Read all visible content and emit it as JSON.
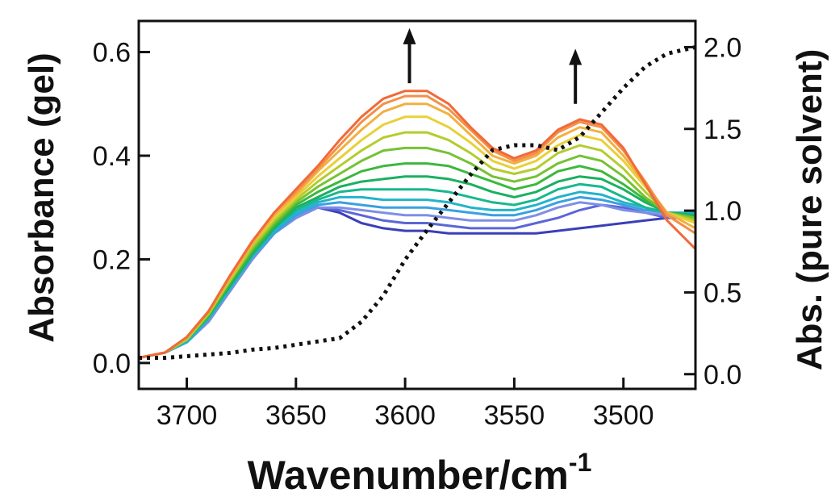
{
  "chart_data": {
    "type": "line",
    "xlabel": "Wavenumber/cm",
    "xlabel_superscript": "-1",
    "ylabel_left": "Absorbance (gel)",
    "ylabel_right": "Abs. (pure solvent)",
    "x_reversed": true,
    "xlim": [
      3722,
      3467
    ],
    "ylim_left": [
      -0.05,
      0.66
    ],
    "ylim_right": [
      -0.09,
      2.16
    ],
    "x_ticks": [
      3700,
      3650,
      3600,
      3550,
      3500
    ],
    "x_tick_labels": [
      "3700",
      "3650",
      "3600",
      "3550",
      "3500"
    ],
    "y_left_ticks": [
      0.0,
      0.2,
      0.4,
      0.6
    ],
    "y_left_tick_labels": [
      "0.0",
      "0.2",
      "0.4",
      "0.6"
    ],
    "y_right_ticks": [
      0.0,
      0.5,
      1.0,
      1.5,
      2.0
    ],
    "y_right_tick_labels": [
      "0.0",
      "0.5",
      "1.0",
      "1.5",
      "2.0"
    ],
    "grid": false,
    "legend": "none",
    "annotations": [
      {
        "type": "arrow-up",
        "x": 3598,
        "y_from": 0.54,
        "y_to": 0.64
      },
      {
        "type": "arrow-up",
        "x": 3522,
        "y_from": 0.5,
        "y_to": 0.6
      }
    ],
    "x": [
      3722,
      3710,
      3700,
      3690,
      3680,
      3670,
      3660,
      3650,
      3640,
      3630,
      3620,
      3610,
      3600,
      3590,
      3580,
      3570,
      3560,
      3550,
      3540,
      3530,
      3520,
      3510,
      3500,
      3490,
      3480,
      3467
    ],
    "series": [
      {
        "color": "#3a3fb8",
        "values": [
          0.01,
          0.02,
          0.04,
          0.08,
          0.14,
          0.2,
          0.25,
          0.28,
          0.3,
          0.29,
          0.27,
          0.26,
          0.255,
          0.255,
          0.25,
          0.25,
          0.25,
          0.25,
          0.25,
          0.255,
          0.26,
          0.265,
          0.27,
          0.275,
          0.28,
          0.28
        ]
      },
      {
        "color": "#5a66d6",
        "values": [
          0.01,
          0.02,
          0.04,
          0.08,
          0.14,
          0.2,
          0.25,
          0.28,
          0.3,
          0.295,
          0.285,
          0.275,
          0.27,
          0.27,
          0.265,
          0.26,
          0.26,
          0.26,
          0.27,
          0.28,
          0.295,
          0.305,
          0.3,
          0.29,
          0.28,
          0.28
        ]
      },
      {
        "color": "#7f8ee6",
        "values": [
          0.01,
          0.02,
          0.04,
          0.08,
          0.14,
          0.2,
          0.25,
          0.28,
          0.3,
          0.3,
          0.295,
          0.29,
          0.285,
          0.285,
          0.28,
          0.275,
          0.275,
          0.275,
          0.285,
          0.3,
          0.31,
          0.305,
          0.295,
          0.29,
          0.285,
          0.285
        ]
      },
      {
        "color": "#3aa0e0",
        "values": [
          0.01,
          0.02,
          0.04,
          0.085,
          0.145,
          0.205,
          0.25,
          0.285,
          0.305,
          0.31,
          0.305,
          0.3,
          0.3,
          0.3,
          0.295,
          0.29,
          0.285,
          0.285,
          0.295,
          0.31,
          0.32,
          0.315,
          0.305,
          0.295,
          0.29,
          0.29
        ]
      },
      {
        "color": "#22b4c8",
        "values": [
          0.01,
          0.02,
          0.04,
          0.085,
          0.145,
          0.205,
          0.255,
          0.29,
          0.31,
          0.32,
          0.32,
          0.315,
          0.315,
          0.315,
          0.31,
          0.3,
          0.295,
          0.295,
          0.305,
          0.32,
          0.33,
          0.325,
          0.31,
          0.3,
          0.29,
          0.29
        ]
      },
      {
        "color": "#18b88e",
        "values": [
          0.01,
          0.02,
          0.045,
          0.09,
          0.15,
          0.21,
          0.26,
          0.295,
          0.315,
          0.33,
          0.335,
          0.335,
          0.335,
          0.335,
          0.33,
          0.32,
          0.31,
          0.305,
          0.315,
          0.335,
          0.345,
          0.34,
          0.32,
          0.3,
          0.29,
          0.285
        ]
      },
      {
        "color": "#1bb060",
        "values": [
          0.01,
          0.02,
          0.045,
          0.09,
          0.15,
          0.21,
          0.26,
          0.3,
          0.32,
          0.34,
          0.35,
          0.355,
          0.36,
          0.36,
          0.355,
          0.345,
          0.33,
          0.32,
          0.33,
          0.35,
          0.36,
          0.355,
          0.335,
          0.31,
          0.29,
          0.285
        ]
      },
      {
        "color": "#3cb83c",
        "values": [
          0.01,
          0.02,
          0.045,
          0.09,
          0.155,
          0.215,
          0.265,
          0.305,
          0.33,
          0.35,
          0.37,
          0.38,
          0.385,
          0.385,
          0.38,
          0.365,
          0.35,
          0.335,
          0.345,
          0.37,
          0.38,
          0.37,
          0.345,
          0.315,
          0.29,
          0.28
        ]
      },
      {
        "color": "#76c232",
        "values": [
          0.01,
          0.02,
          0.045,
          0.095,
          0.16,
          0.22,
          0.27,
          0.31,
          0.34,
          0.365,
          0.39,
          0.41,
          0.415,
          0.415,
          0.405,
          0.385,
          0.36,
          0.35,
          0.36,
          0.385,
          0.4,
          0.39,
          0.36,
          0.32,
          0.29,
          0.28
        ]
      },
      {
        "color": "#b4cc2e",
        "values": [
          0.01,
          0.02,
          0.045,
          0.095,
          0.16,
          0.225,
          0.275,
          0.315,
          0.35,
          0.38,
          0.41,
          0.435,
          0.445,
          0.445,
          0.43,
          0.405,
          0.375,
          0.365,
          0.375,
          0.405,
          0.42,
          0.41,
          0.375,
          0.33,
          0.29,
          0.275
        ]
      },
      {
        "color": "#e8d038",
        "values": [
          0.01,
          0.02,
          0.05,
          0.1,
          0.165,
          0.23,
          0.28,
          0.32,
          0.36,
          0.395,
          0.43,
          0.46,
          0.475,
          0.475,
          0.455,
          0.425,
          0.39,
          0.375,
          0.39,
          0.42,
          0.44,
          0.43,
          0.39,
          0.34,
          0.29,
          0.27
        ]
      },
      {
        "color": "#f2b040",
        "values": [
          0.01,
          0.02,
          0.05,
          0.1,
          0.165,
          0.23,
          0.285,
          0.325,
          0.37,
          0.41,
          0.45,
          0.485,
          0.5,
          0.5,
          0.48,
          0.44,
          0.4,
          0.385,
          0.4,
          0.435,
          0.455,
          0.445,
          0.4,
          0.345,
          0.29,
          0.26
        ]
      },
      {
        "color": "#f49048",
        "values": [
          0.01,
          0.02,
          0.05,
          0.1,
          0.17,
          0.235,
          0.29,
          0.33,
          0.375,
          0.42,
          0.465,
          0.5,
          0.515,
          0.515,
          0.49,
          0.45,
          0.41,
          0.39,
          0.405,
          0.445,
          0.465,
          0.455,
          0.41,
          0.35,
          0.285,
          0.25
        ]
      },
      {
        "color": "#f06a3a",
        "values": [
          0.01,
          0.02,
          0.05,
          0.1,
          0.17,
          0.235,
          0.29,
          0.335,
          0.38,
          0.43,
          0.475,
          0.51,
          0.525,
          0.525,
          0.5,
          0.455,
          0.415,
          0.395,
          0.41,
          0.45,
          0.47,
          0.46,
          0.415,
          0.345,
          0.275,
          0.22
        ]
      }
    ],
    "dotted_series": {
      "axis": "right",
      "x": [
        3722,
        3710,
        3700,
        3690,
        3680,
        3670,
        3660,
        3650,
        3640,
        3630,
        3620,
        3610,
        3600,
        3590,
        3580,
        3570,
        3560,
        3550,
        3540,
        3530,
        3520,
        3510,
        3500,
        3490,
        3480,
        3467
      ],
      "values": [
        0.1,
        0.1,
        0.11,
        0.12,
        0.13,
        0.15,
        0.16,
        0.18,
        0.2,
        0.22,
        0.32,
        0.48,
        0.7,
        0.88,
        1.05,
        1.22,
        1.37,
        1.4,
        1.4,
        1.37,
        1.45,
        1.6,
        1.75,
        1.88,
        1.96,
        2.0
      ]
    }
  }
}
